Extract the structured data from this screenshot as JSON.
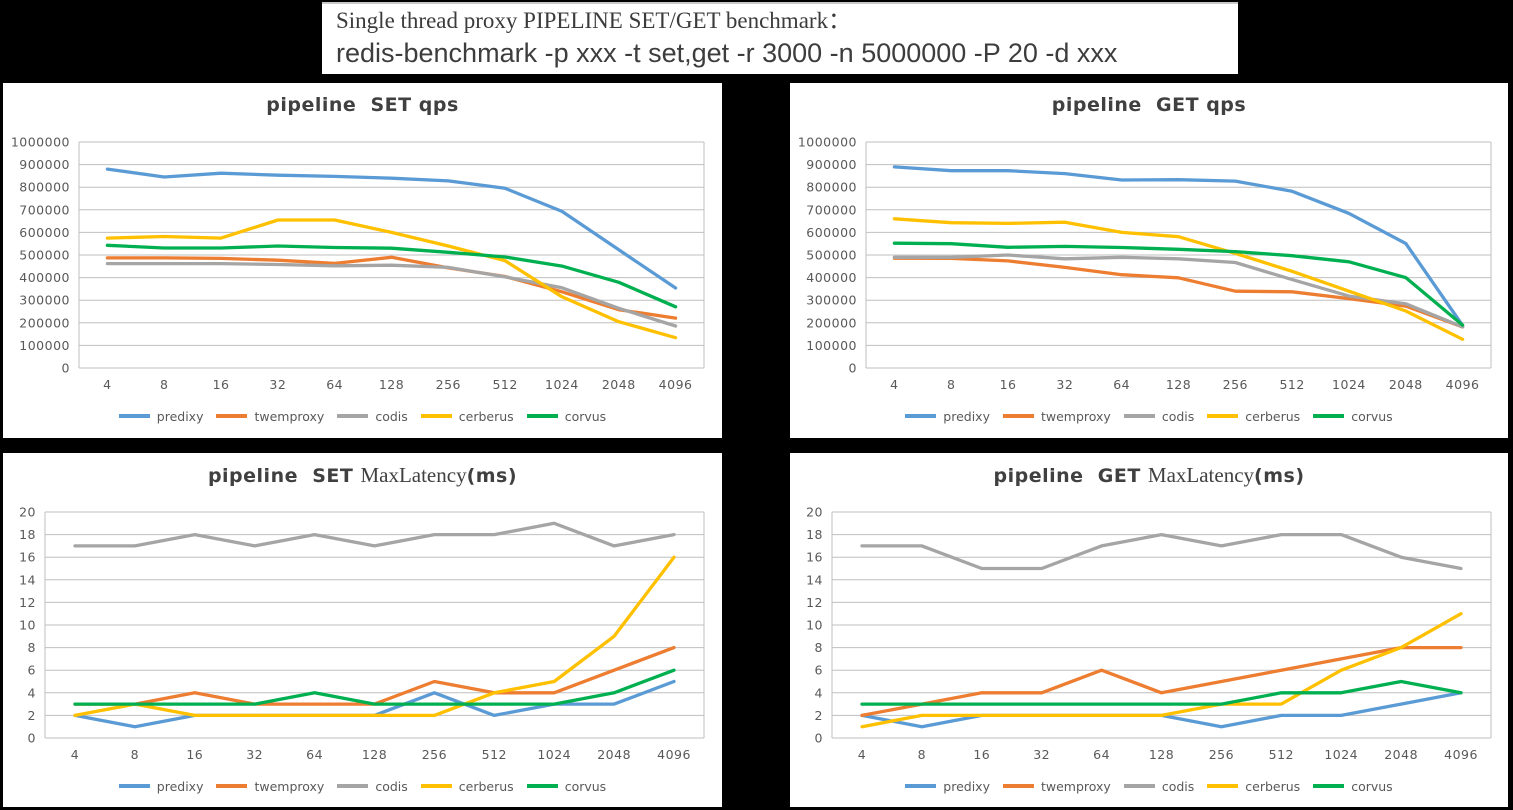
{
  "header": {
    "title_line1": "Single thread proxy PIPELINE SET/GET benchmark：",
    "title_line2": "redis-benchmark -p xxx -t set,get -r 3000 -n 5000000 -P 20 -d xxx"
  },
  "palette": {
    "predixy": "#5B9BD5",
    "twemproxy": "#ED7D31",
    "codis": "#A5A5A5",
    "cerberus": "#FFC000",
    "corvus": "#00B050",
    "grid_line": "#BFBFBF",
    "tick_text": "#595959",
    "title_text": "#404040",
    "page_bg": "#000000",
    "panel_bg": "#FFFFFF"
  },
  "legend_entries": [
    "predixy",
    "twemproxy",
    "codis",
    "cerberus",
    "corvus"
  ],
  "chart_data": [
    {
      "type": "line",
      "title_plain": "pipeline  SET qps",
      "title_parts": [
        {
          "text": "pipeline  SET qps",
          "font": "sans-bold"
        }
      ],
      "categories": [
        "4",
        "8",
        "16",
        "32",
        "64",
        "128",
        "256",
        "512",
        "1024",
        "2048",
        "4096"
      ],
      "xlabel": "",
      "ylabel": "",
      "ylim": [
        0,
        1000000
      ],
      "ytick_step": 100000,
      "grid": true,
      "legend_position": "bottom",
      "series": [
        {
          "name": "predixy",
          "color": "#5B9BD5",
          "values": [
            880000,
            845000,
            862000,
            853000,
            848000,
            840000,
            828000,
            795000,
            693000,
            523000,
            354000
          ]
        },
        {
          "name": "twemproxy",
          "color": "#ED7D31",
          "values": [
            487000,
            487000,
            485000,
            477000,
            463000,
            490000,
            443000,
            405000,
            337000,
            258000,
            221000
          ]
        },
        {
          "name": "codis",
          "color": "#A5A5A5",
          "values": [
            462000,
            462000,
            462000,
            458000,
            452000,
            455000,
            445000,
            403000,
            355000,
            264000,
            186000
          ]
        },
        {
          "name": "cerberus",
          "color": "#FFC000",
          "values": [
            575000,
            582000,
            575000,
            655000,
            655000,
            600000,
            540000,
            475000,
            315000,
            205000,
            134000
          ]
        },
        {
          "name": "corvus",
          "color": "#00B050",
          "values": [
            543000,
            531000,
            531000,
            540000,
            533000,
            530000,
            512000,
            491000,
            451000,
            379000,
            271000
          ]
        }
      ]
    },
    {
      "type": "line",
      "title_plain": "pipeline  GET qps",
      "title_parts": [
        {
          "text": "pipeline  GET qps",
          "font": "sans-bold"
        }
      ],
      "categories": [
        "4",
        "8",
        "16",
        "32",
        "64",
        "128",
        "256",
        "512",
        "1024",
        "2048",
        "4096"
      ],
      "xlabel": "",
      "ylabel": "",
      "ylim": [
        0,
        1000000
      ],
      "ytick_step": 100000,
      "grid": true,
      "legend_position": "bottom",
      "series": [
        {
          "name": "predixy",
          "color": "#5B9BD5",
          "values": [
            890000,
            873000,
            873000,
            860000,
            832000,
            833000,
            827000,
            782000,
            684000,
            551000,
            188000
          ]
        },
        {
          "name": "twemproxy",
          "color": "#ED7D31",
          "values": [
            486000,
            485000,
            474000,
            445000,
            413000,
            399000,
            340000,
            337000,
            307000,
            274000,
            182000
          ]
        },
        {
          "name": "codis",
          "color": "#A5A5A5",
          "values": [
            490000,
            490000,
            500000,
            483000,
            490000,
            483000,
            467000,
            391000,
            318000,
            284000,
            182000
          ]
        },
        {
          "name": "cerberus",
          "color": "#FFC000",
          "values": [
            660000,
            643000,
            640000,
            645000,
            600000,
            581000,
            507000,
            428000,
            340000,
            252000,
            127000
          ]
        },
        {
          "name": "corvus",
          "color": "#00B050",
          "values": [
            552000,
            550000,
            534000,
            538000,
            533000,
            525000,
            515000,
            497000,
            470000,
            400000,
            190000
          ]
        }
      ]
    },
    {
      "type": "line",
      "title_plain": "pipeline  SET MaxLatency(ms)",
      "title_parts": [
        {
          "text": "pipeline  SET ",
          "font": "sans-bold"
        },
        {
          "text": "MaxLatency",
          "font": "serif"
        },
        {
          "text": "(ms)",
          "font": "sans-bold"
        }
      ],
      "categories": [
        "4",
        "8",
        "16",
        "32",
        "64",
        "128",
        "256",
        "512",
        "1024",
        "2048",
        "4096"
      ],
      "xlabel": "",
      "ylabel": "",
      "ylim": [
        0,
        20
      ],
      "ytick_step": 2,
      "grid": true,
      "legend_position": "bottom",
      "series": [
        {
          "name": "predixy",
          "color": "#5B9BD5",
          "values": [
            2,
            1,
            2,
            2,
            2,
            2,
            4,
            2,
            3,
            3,
            5
          ]
        },
        {
          "name": "twemproxy",
          "color": "#ED7D31",
          "values": [
            3,
            3,
            4,
            3,
            3,
            3,
            5,
            4,
            4,
            6,
            8
          ]
        },
        {
          "name": "codis",
          "color": "#A5A5A5",
          "values": [
            17,
            17,
            18,
            17,
            18,
            17,
            18,
            18,
            19,
            17,
            18
          ]
        },
        {
          "name": "cerberus",
          "color": "#FFC000",
          "values": [
            2,
            3,
            2,
            2,
            2,
            2,
            2,
            4,
            5,
            9,
            16
          ]
        },
        {
          "name": "corvus",
          "color": "#00B050",
          "values": [
            3,
            3,
            3,
            3,
            4,
            3,
            3,
            3,
            3,
            4,
            6
          ]
        }
      ]
    },
    {
      "type": "line",
      "title_plain": "pipeline  GET MaxLatency(ms)",
      "title_parts": [
        {
          "text": "pipeline  GET ",
          "font": "sans-bold"
        },
        {
          "text": "MaxLatency",
          "font": "serif"
        },
        {
          "text": "(ms)",
          "font": "sans-bold"
        }
      ],
      "categories": [
        "4",
        "8",
        "16",
        "32",
        "64",
        "128",
        "256",
        "512",
        "1024",
        "2048",
        "4096"
      ],
      "xlabel": "",
      "ylabel": "",
      "ylim": [
        0,
        20
      ],
      "ytick_step": 2,
      "grid": true,
      "legend_position": "bottom",
      "series": [
        {
          "name": "predixy",
          "color": "#5B9BD5",
          "values": [
            2,
            1,
            2,
            2,
            2,
            2,
            1,
            2,
            2,
            3,
            4
          ]
        },
        {
          "name": "twemproxy",
          "color": "#ED7D31",
          "values": [
            2,
            3,
            4,
            4,
            6,
            4,
            5,
            6,
            7,
            8,
            8
          ]
        },
        {
          "name": "codis",
          "color": "#A5A5A5",
          "values": [
            17,
            17,
            15,
            15,
            17,
            18,
            17,
            18,
            18,
            16,
            15
          ]
        },
        {
          "name": "cerberus",
          "color": "#FFC000",
          "values": [
            1,
            2,
            2,
            2,
            2,
            2,
            3,
            3,
            6,
            8,
            11
          ]
        },
        {
          "name": "corvus",
          "color": "#00B050",
          "values": [
            3,
            3,
            3,
            3,
            3,
            3,
            3,
            4,
            4,
            5,
            4
          ]
        }
      ]
    }
  ]
}
